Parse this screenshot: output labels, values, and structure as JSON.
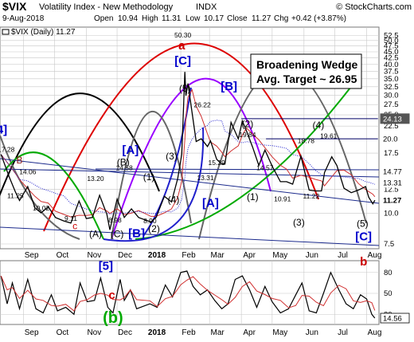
{
  "header": {
    "symbol": "$VIX",
    "name": "Volatility Index - New Methodology",
    "exchange": "INDX",
    "watermark": "© StockCharts.com",
    "date": "9-Aug-2018",
    "open_label": "Open",
    "open": "10.94",
    "high_label": "High",
    "high": "11.31",
    "low_label": "Low",
    "low": "10.17",
    "close_label": "Close",
    "close": "11.27",
    "chg_label": "Chg",
    "chg": "+0.42 (+3.87%)",
    "legend_main": "$VIX (Daily) 11.27"
  },
  "annotations": {
    "box_line1": "Broadening Wedge",
    "box_line2": "Avg. Target ~ 26.95"
  },
  "chart_data": [
    {
      "type": "line",
      "title": "$VIX (Daily) 11.27",
      "y_scale": "log",
      "ylim": [
        7.5,
        55
      ],
      "y_ticks": [
        "52.5",
        "50.0",
        "47.5",
        "45.0",
        "42.5",
        "40.0",
        "37.5",
        "35.0",
        "32.5",
        "30.0",
        "27.5",
        "25.0",
        "22.5",
        "20.0",
        "17.5",
        "15.0",
        "12.5",
        "10.0",
        "7.5"
      ],
      "x_ticks": [
        "Sep",
        "Oct",
        "Nov",
        "Dec",
        "2018",
        "Feb",
        "Mar",
        "Apr",
        "May",
        "Jun",
        "Jul",
        "Aug"
      ],
      "series": [
        {
          "name": "$VIX",
          "values": [
            {
              "x": "2017-08-10",
              "y": 17.28
            },
            {
              "x": "2017-08-18",
              "y": 14.0
            },
            {
              "x": "2017-08-24",
              "y": 12.2
            },
            {
              "x": "2017-08-28",
              "y": 11.25
            },
            {
              "x": "2017-09-05",
              "y": 12.8
            },
            {
              "x": "2017-09-12",
              "y": 10.5
            },
            {
              "x": "2017-09-18",
              "y": 10.02
            },
            {
              "x": "2017-09-25",
              "y": 10.6
            },
            {
              "x": "2017-10-02",
              "y": 9.6
            },
            {
              "x": "2017-10-10",
              "y": 9.3
            },
            {
              "x": "2017-10-17",
              "y": 9.11
            },
            {
              "x": "2017-10-25",
              "y": 11.2
            },
            {
              "x": "2017-11-01",
              "y": 9.5
            },
            {
              "x": "2017-11-07",
              "y": 9.6
            },
            {
              "x": "2017-11-14",
              "y": 11.8
            },
            {
              "x": "2017-11-21",
              "y": 9.9
            },
            {
              "x": "2017-11-24",
              "y": 8.56
            },
            {
              "x": "2017-12-01",
              "y": 11.4
            },
            {
              "x": "2017-12-08",
              "y": 9.6
            },
            {
              "x": "2017-12-15",
              "y": 10.4
            },
            {
              "x": "2017-12-22",
              "y": 9.6
            },
            {
              "x": "2018-01-03",
              "y": 9.2
            },
            {
              "x": "2018-01-08",
              "y": 9.6
            },
            {
              "x": "2018-01-16",
              "y": 11.7
            },
            {
              "x": "2018-01-23",
              "y": 11.1
            },
            {
              "x": "2018-01-29",
              "y": 13.8
            },
            {
              "x": "2018-02-02",
              "y": 17.3
            },
            {
              "x": "2018-02-05",
              "y": 37.3
            },
            {
              "x": "2018-02-06",
              "y": 29.9
            },
            {
              "x": "2018-02-08",
              "y": 33.5
            },
            {
              "x": "2018-02-12",
              "y": 25.6
            },
            {
              "x": "2018-02-16",
              "y": 19.5
            },
            {
              "x": "2018-02-21",
              "y": 20.0
            },
            {
              "x": "2018-02-27",
              "y": 18.6
            },
            {
              "x": "2018-03-02",
              "y": 19.6
            },
            {
              "x": "2018-03-08",
              "y": 16.5
            },
            {
              "x": "2018-03-13",
              "y": 15.8
            },
            {
              "x": "2018-03-16",
              "y": 15.8
            },
            {
              "x": "2018-03-22",
              "y": 23.3
            },
            {
              "x": "2018-03-29",
              "y": 20.0
            },
            {
              "x": "2018-04-02",
              "y": 23.6
            },
            {
              "x": "2018-04-06",
              "y": 21.5
            },
            {
              "x": "2018-04-12",
              "y": 18.5
            },
            {
              "x": "2018-04-18",
              "y": 15.6
            },
            {
              "x": "2018-04-24",
              "y": 18.0
            },
            {
              "x": "2018-05-01",
              "y": 15.5
            },
            {
              "x": "2018-05-09",
              "y": 13.4
            },
            {
              "x": "2018-05-15",
              "y": 13.4
            },
            {
              "x": "2018-05-21",
              "y": 13.1
            },
            {
              "x": "2018-05-29",
              "y": 17.0
            },
            {
              "x": "2018-06-06",
              "y": 12.4
            },
            {
              "x": "2018-06-12",
              "y": 12.3
            },
            {
              "x": "2018-06-18",
              "y": 12.3
            },
            {
              "x": "2018-06-21",
              "y": 14.6
            },
            {
              "x": "2018-06-28",
              "y": 16.9
            },
            {
              "x": "2018-07-03",
              "y": 15.6
            },
            {
              "x": "2018-07-10",
              "y": 12.6
            },
            {
              "x": "2018-07-17",
              "y": 12.1
            },
            {
              "x": "2018-07-24",
              "y": 12.4
            },
            {
              "x": "2018-07-31",
              "y": 12.8
            },
            {
              "x": "2018-08-03",
              "y": 11.6
            },
            {
              "x": "2018-08-07",
              "y": 10.9
            },
            {
              "x": "2018-08-09",
              "y": 11.27
            }
          ]
        }
      ],
      "price_labels": [
        {
          "x": "2017-08-15",
          "y": 17.28,
          "text": "17.28"
        },
        {
          "x": "2017-09-05",
          "y": 14.06,
          "text": "14.06"
        },
        {
          "x": "2017-08-24",
          "y": 11.25,
          "text": "11.25"
        },
        {
          "x": "2017-09-18",
          "y": 10.02,
          "text": "10.02"
        },
        {
          "x": "2017-10-17",
          "y": 9.11,
          "text": "9.11"
        },
        {
          "x": "2017-11-10",
          "y": 13.2,
          "text": "13.20"
        },
        {
          "x": "2017-11-29",
          "y": 8.98,
          "text": "8.98"
        },
        {
          "x": "2017-12-08",
          "y": 14.58,
          "text": "14.58"
        },
        {
          "x": "2018-01-02",
          "y": 8.9,
          "text": "8.90"
        },
        {
          "x": "2018-02-03",
          "y": 50.3,
          "text": "50.30"
        },
        {
          "x": "2018-02-22",
          "y": 26.22,
          "text": "26.22"
        },
        {
          "x": "2018-03-08",
          "y": 15.29,
          "text": "15.29"
        },
        {
          "x": "2018-04-07",
          "y": 19.84,
          "text": "19.84"
        },
        {
          "x": "2018-04-24",
          "y": 14.57,
          "text": "14.57"
        },
        {
          "x": "2018-05-11",
          "y": 10.91,
          "text": "10.91"
        },
        {
          "x": "2018-06-03",
          "y": 18.78,
          "text": "18.78"
        },
        {
          "x": "2018-06-25",
          "y": 19.61,
          "text": "19.61"
        },
        {
          "x": "2018-06-08",
          "y": 11.22,
          "text": "11.22"
        },
        {
          "x": "2018-02-25",
          "y": 13.31,
          "text": "13.31"
        }
      ],
      "right_labels": [
        {
          "y": 24.13,
          "text": "24.13",
          "color": "#ffffff",
          "bg": "#555555"
        },
        {
          "y": 20.0,
          "text": "20.0",
          "color": "#000000",
          "bg": "#ffffff"
        },
        {
          "y": 14.77,
          "text": "14.77",
          "color": "#000000",
          "bg": "#ffffff"
        },
        {
          "y": 13.31,
          "text": "13.31",
          "color": "#000000",
          "bg": "#ffffff"
        },
        {
          "y": 11.27,
          "text": "11.27",
          "color": "#000000",
          "bg": "#ffffff",
          "bold": true
        }
      ],
      "wave_labels": [
        {
          "text": "[4]",
          "color": "#0000cc",
          "size": "big",
          "x": "2017-08-09",
          "y": 21.0
        },
        {
          "text": "B",
          "color": "#8b1a1a",
          "size": "mid",
          "x": "2017-08-28",
          "y": 15.9
        },
        {
          "text": "[A]",
          "color": "#0000cc",
          "size": "big",
          "x": "2017-12-14",
          "y": 17.4
        },
        {
          "text": "(B)",
          "color": "#000000",
          "size": "mid",
          "x": "2017-12-07",
          "y": 15.6
        },
        {
          "text": "(1)",
          "color": "#000000",
          "size": "mid",
          "x": "2018-01-01",
          "y": 13.6
        },
        {
          "text": "(3)",
          "color": "#000000",
          "size": "mid",
          "x": "2018-01-23",
          "y": 16.5
        },
        {
          "text": "(4)",
          "color": "#000000",
          "size": "mid",
          "x": "2018-01-25",
          "y": 11.0
        },
        {
          "text": "(2)",
          "color": "#000000",
          "size": "mid",
          "x": "2018-01-06",
          "y": 8.4
        },
        {
          "text": "(A)",
          "color": "#000000",
          "size": "mid",
          "x": "2017-11-10",
          "y": 8.0
        },
        {
          "text": "(C)",
          "color": "#000000",
          "size": "mid",
          "x": "2017-12-01",
          "y": 8.0
        },
        {
          "text": "[B]",
          "color": "#0000cc",
          "size": "big",
          "x": "2017-12-20",
          "y": 8.0
        },
        {
          "text": "c",
          "color": "#cc0000",
          "size": "mid",
          "x": "2017-10-21",
          "y": 8.6
        },
        {
          "text": "a",
          "color": "#cc0000",
          "size": "big",
          "x": "2018-02-02",
          "y": 46.0
        },
        {
          "text": "[C]",
          "color": "#0000cc",
          "size": "big",
          "x": "2018-02-03",
          "y": 40.0
        },
        {
          "text": "(5)",
          "color": "#000000",
          "size": "mid",
          "x": "2018-02-05",
          "y": 31.0
        },
        {
          "text": "[B]",
          "color": "#0000cc",
          "size": "big",
          "x": "2018-03-20",
          "y": 31.5
        },
        {
          "text": "(2)",
          "color": "#000000",
          "size": "mid",
          "x": "2018-04-07",
          "y": 22.3
        },
        {
          "text": "(1)",
          "color": "#000000",
          "size": "mid",
          "x": "2018-04-12",
          "y": 11.3
        },
        {
          "text": "[A]",
          "color": "#0000cc",
          "size": "big",
          "x": "2018-03-02",
          "y": 10.6
        },
        {
          "text": "(4)",
          "color": "#000000",
          "size": "mid",
          "x": "2018-06-15",
          "y": 22.0
        },
        {
          "text": "(3)",
          "color": "#000000",
          "size": "mid",
          "x": "2018-05-27",
          "y": 8.9
        },
        {
          "text": "(5)",
          "color": "#000000",
          "size": "mid",
          "x": "2018-07-28",
          "y": 8.8
        },
        {
          "text": "[C]",
          "color": "#0000cc",
          "size": "big",
          "x": "2018-07-29",
          "y": 7.75
        }
      ],
      "reference_lines": [
        {
          "from": {
            "x": "2018-04-01",
            "y": 24.13
          },
          "to": {
            "x": "2018-08-12",
            "y": 24.13
          },
          "color": "#000066"
        },
        {
          "from": {
            "x": "2018-04-25",
            "y": 20.0
          },
          "to": {
            "x": "2018-08-12",
            "y": 20.0
          },
          "color": "#000066"
        }
      ],
      "xlabel": "",
      "ylabel": ""
    },
    {
      "type": "line",
      "title": "",
      "ylim": [
        10,
        90
      ],
      "y_ticks": [
        "80",
        "50",
        "20"
      ],
      "x_ticks": [
        "Sep",
        "Oct",
        "Nov",
        "Dec",
        "2018",
        "Feb",
        "Mar",
        "Apr",
        "May",
        "Jun",
        "Jul",
        "Aug"
      ],
      "last_value_label": "14.56",
      "series": [
        {
          "values": [
            {
              "x": "2017-08-10",
              "y": 75
            },
            {
              "x": "2017-08-16",
              "y": 35
            },
            {
              "x": "2017-08-21",
              "y": 65
            },
            {
              "x": "2017-08-28",
              "y": 28
            },
            {
              "x": "2017-09-05",
              "y": 70
            },
            {
              "x": "2017-09-13",
              "y": 28
            },
            {
              "x": "2017-09-20",
              "y": 22
            },
            {
              "x": "2017-09-28",
              "y": 48
            },
            {
              "x": "2017-10-04",
              "y": 25
            },
            {
              "x": "2017-10-12",
              "y": 30
            },
            {
              "x": "2017-10-20",
              "y": 20
            },
            {
              "x": "2017-10-26",
              "y": 65
            },
            {
              "x": "2017-11-02",
              "y": 38
            },
            {
              "x": "2017-11-09",
              "y": 40
            },
            {
              "x": "2017-11-15",
              "y": 72
            },
            {
              "x": "2017-11-22",
              "y": 30
            },
            {
              "x": "2017-11-27",
              "y": 22
            },
            {
              "x": "2017-12-04",
              "y": 70
            },
            {
              "x": "2017-12-08",
              "y": 40
            },
            {
              "x": "2017-12-14",
              "y": 55
            },
            {
              "x": "2017-12-20",
              "y": 28
            },
            {
              "x": "2018-01-02",
              "y": 35
            },
            {
              "x": "2018-01-09",
              "y": 30
            },
            {
              "x": "2018-01-17",
              "y": 62
            },
            {
              "x": "2018-01-24",
              "y": 45
            },
            {
              "x": "2018-02-01",
              "y": 80
            },
            {
              "x": "2018-02-07",
              "y": 82
            },
            {
              "x": "2018-02-13",
              "y": 60
            },
            {
              "x": "2018-02-20",
              "y": 48
            },
            {
              "x": "2018-02-27",
              "y": 55
            },
            {
              "x": "2018-03-06",
              "y": 40
            },
            {
              "x": "2018-03-13",
              "y": 28
            },
            {
              "x": "2018-03-19",
              "y": 35
            },
            {
              "x": "2018-03-26",
              "y": 70
            },
            {
              "x": "2018-04-02",
              "y": 75
            },
            {
              "x": "2018-04-09",
              "y": 55
            },
            {
              "x": "2018-04-16",
              "y": 30
            },
            {
              "x": "2018-04-24",
              "y": 60
            },
            {
              "x": "2018-05-01",
              "y": 38
            },
            {
              "x": "2018-05-09",
              "y": 22
            },
            {
              "x": "2018-05-17",
              "y": 28
            },
            {
              "x": "2018-05-24",
              "y": 48
            },
            {
              "x": "2018-05-30",
              "y": 65
            },
            {
              "x": "2018-06-06",
              "y": 25
            },
            {
              "x": "2018-06-13",
              "y": 22
            },
            {
              "x": "2018-06-20",
              "y": 50
            },
            {
              "x": "2018-06-27",
              "y": 80
            },
            {
              "x": "2018-07-05",
              "y": 55
            },
            {
              "x": "2018-07-12",
              "y": 35
            },
            {
              "x": "2018-07-19",
              "y": 28
            },
            {
              "x": "2018-07-26",
              "y": 48
            },
            {
              "x": "2018-08-01",
              "y": 42
            },
            {
              "x": "2018-08-06",
              "y": 20
            },
            {
              "x": "2018-08-09",
              "y": 14.56
            }
          ]
        }
      ],
      "wave_labels": [
        {
          "text": "[5]",
          "color": "#0000cc",
          "size": "big",
          "x": "2017-11-20",
          "y": 84
        },
        {
          "text": "c",
          "color": "#cc0000",
          "size": "big",
          "x": "2017-11-26",
          "y": 42
        },
        {
          "text": "(b)",
          "color": "#00aa00",
          "size": "huge",
          "x": "2017-11-27",
          "y": 8
        },
        {
          "text": "b",
          "color": "#cc0000",
          "size": "big",
          "x": "2018-07-29",
          "y": 90
        }
      ]
    }
  ],
  "colors": {
    "price": "#000000",
    "ma_red": "#d03030",
    "ma_blue": "#2020cc",
    "grid": "#c8c8c8",
    "border": "#777777",
    "box_border": "#000000",
    "highlight_bg": "#555555"
  }
}
